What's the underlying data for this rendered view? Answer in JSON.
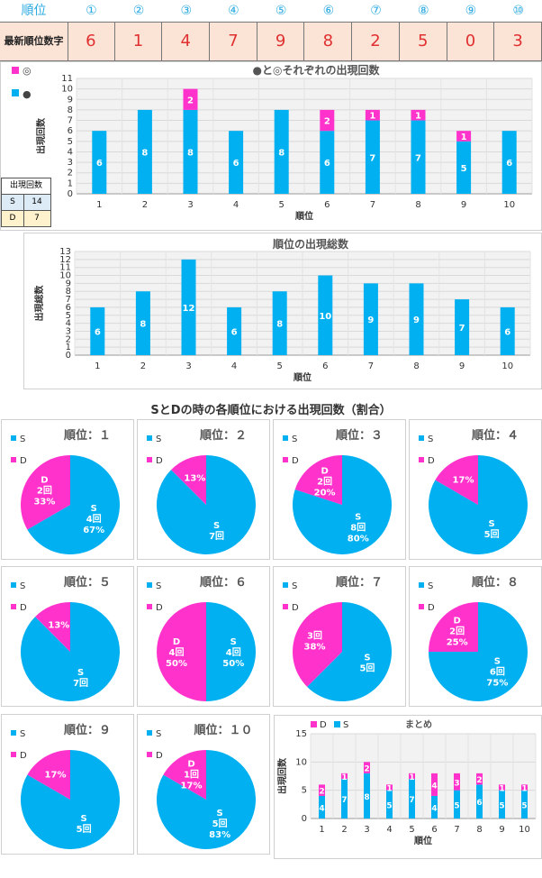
{
  "header": {
    "rank_label": "順位",
    "ranks": [
      "①",
      "②",
      "③",
      "④",
      "⑤",
      "⑥",
      "⑦",
      "⑧",
      "⑨",
      "⑩"
    ],
    "latest_label": "最新順位数字",
    "latest_digits": [
      "6",
      "1",
      "4",
      "7",
      "9",
      "8",
      "2",
      "5",
      "0",
      "3"
    ]
  },
  "count_table": {
    "title": "出現回数",
    "rows": [
      {
        "key": "S",
        "value": "14"
      },
      {
        "key": "D",
        "value": "7"
      }
    ]
  },
  "colors": {
    "s": "#00b0f0",
    "d": "#ff33cc",
    "header_text": "#29a9e1",
    "digit_text": "#e03030",
    "digit_bg": "#fbe3d6"
  },
  "chart_data": [
    {
      "type": "bar",
      "stacked": true,
      "title": "●と◎それぞれの出現回数",
      "xlabel": "順位",
      "ylabel": "出現回数",
      "ylim": [
        0,
        11
      ],
      "grid": true,
      "legend": [
        "◎",
        "●"
      ],
      "categories": [
        "1",
        "2",
        "3",
        "4",
        "5",
        "6",
        "7",
        "8",
        "9",
        "10"
      ],
      "series": [
        {
          "name": "●",
          "values": [
            6,
            8,
            8,
            6,
            8,
            6,
            7,
            7,
            5,
            6
          ]
        },
        {
          "name": "◎",
          "values": [
            0,
            0,
            2,
            0,
            0,
            2,
            1,
            1,
            1,
            0
          ]
        }
      ]
    },
    {
      "type": "bar",
      "title": "順位の出現総数",
      "xlabel": "順位",
      "ylabel": "出現総数",
      "ylim": [
        0,
        13
      ],
      "grid": true,
      "categories": [
        "1",
        "2",
        "3",
        "4",
        "5",
        "6",
        "7",
        "8",
        "9",
        "10"
      ],
      "values": [
        6,
        8,
        12,
        6,
        8,
        10,
        9,
        9,
        7,
        6
      ]
    },
    {
      "type": "pie",
      "section_title": "SとDの時の各順位における出現回数（割合）",
      "legend": [
        "S",
        "D"
      ],
      "pies": [
        {
          "title": "順位：１",
          "s": 4,
          "d": 2,
          "s_label": "S\n4回\n67%",
          "d_label": "D\n2回\n33%"
        },
        {
          "title": "順位：２",
          "s": 7,
          "d": 1,
          "s_label": "S\n7回",
          "d_label": "13%"
        },
        {
          "title": "順位：３",
          "s": 8,
          "d": 2,
          "s_label": "S\n8回\n80%",
          "d_label": "D\n2回\n20%"
        },
        {
          "title": "順位：４",
          "s": 5,
          "d": 1,
          "s_label": "S\n5回",
          "d_label": "17%"
        },
        {
          "title": "順位：５",
          "s": 7,
          "d": 1,
          "s_label": "S\n7回",
          "d_label": "13%"
        },
        {
          "title": "順位：６",
          "s": 4,
          "d": 4,
          "s_label": "S\n4回\n50%",
          "d_label": "D\n4回\n50%"
        },
        {
          "title": "順位：７",
          "s": 5,
          "d": 3,
          "s_label": "S\n5回",
          "d_label": "3回\n38%"
        },
        {
          "title": "順位：８",
          "s": 6,
          "d": 2,
          "s_label": "S\n6回\n75%",
          "d_label": "D\n2回\n25%"
        },
        {
          "title": "順位：９",
          "s": 5,
          "d": 1,
          "s_label": "S\n5回",
          "d_label": "17%"
        },
        {
          "title": "順位：１０",
          "s": 5,
          "d": 1,
          "s_label": "S\n5回\n83%",
          "d_label": "D\n1回\n17%"
        }
      ]
    },
    {
      "type": "bar",
      "stacked": true,
      "title": "まとめ",
      "xlabel": "順位",
      "ylabel": "出現回数",
      "ylim": [
        0,
        15
      ],
      "yticks": [
        0,
        5,
        10,
        15
      ],
      "legend": [
        "D",
        "S"
      ],
      "categories": [
        "1",
        "2",
        "3",
        "4",
        "5",
        "6",
        "7",
        "8",
        "9",
        "10"
      ],
      "series": [
        {
          "name": "S",
          "values": [
            4,
            7,
            8,
            5,
            7,
            4,
            5,
            6,
            5,
            5
          ]
        },
        {
          "name": "D",
          "values": [
            2,
            1,
            2,
            1,
            1,
            4,
            3,
            2,
            1,
            1
          ]
        }
      ]
    }
  ]
}
